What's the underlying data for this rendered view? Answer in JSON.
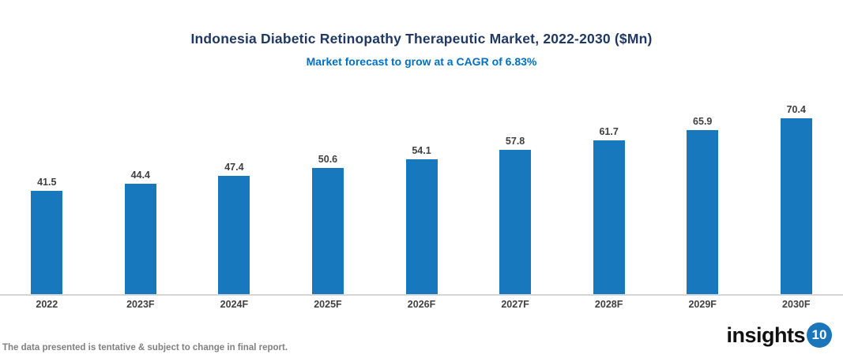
{
  "header": {
    "title": "Indonesia Diabetic Retinopathy Therapeutic Market, 2022-2030 ($Mn)",
    "subtitle": "Market forecast to grow at a CAGR of 6.83%"
  },
  "chart_data": {
    "type": "bar",
    "title": "Indonesia Diabetic Retinopathy Therapeutic Market, 2022-2030 ($Mn)",
    "subtitle": "Market forecast to grow at a CAGR of 6.83%",
    "categories": [
      "2022",
      "2023F",
      "2024F",
      "2025F",
      "2026F",
      "2027F",
      "2028F",
      "2029F",
      "2030F"
    ],
    "values": [
      41.5,
      44.4,
      47.4,
      50.6,
      54.1,
      57.8,
      61.7,
      65.9,
      70.4
    ],
    "xlabel": "",
    "ylabel": "",
    "ylim": [
      0,
      80
    ],
    "grid": false,
    "legend": false,
    "value_labels_shown": true
  },
  "colors": {
    "bar": "#1878BE",
    "title": "#1F3864",
    "subtitle": "#0070C0",
    "data_label": "#404040",
    "axis_label": "#404040",
    "axis_line": "#D6D6D6",
    "disclaimer": "#808080",
    "logo_badge": "#1B75BB"
  },
  "footer": {
    "disclaimer": "The data presented is tentative & subject to change in final report."
  },
  "logo": {
    "text": "insights",
    "badge": "10"
  }
}
